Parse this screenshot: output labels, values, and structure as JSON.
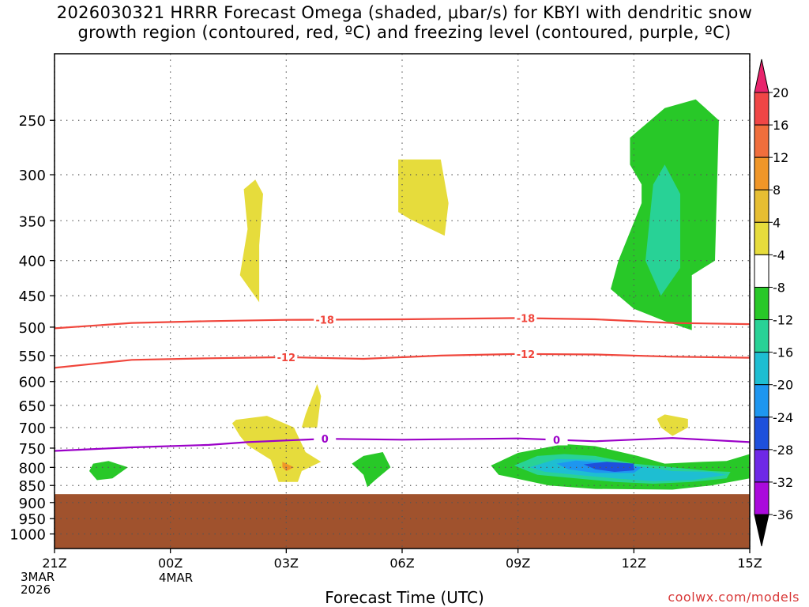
{
  "title_line1": "2026030321 HRRR Forecast Omega (shaded, μbar/s) for KBYI with dendritic snow",
  "title_line2": "growth region (contoured, red, ºC) and freezing level (contoured, purple, ºC)",
  "xlabel": "Forecast Time (UTC)",
  "credit": "coolwx.com/models",
  "date_labels": [
    "3MAR",
    "2026"
  ],
  "date_label_2": "4MAR",
  "colors": {
    "ground": "#a0522d",
    "dgz_line": "#f0463c",
    "freezing_line": "#9b00c8",
    "gridline": "#555555"
  },
  "chart_data": {
    "type": "cross-section",
    "title": "HRRR Forecast Omega for KBYI",
    "x_ticks": [
      "21Z",
      "00Z",
      "03Z",
      "06Z",
      "09Z",
      "12Z",
      "15Z"
    ],
    "x_hours": [
      0,
      3,
      6,
      9,
      12,
      15,
      18
    ],
    "y_ticks": [
      250,
      300,
      350,
      400,
      450,
      500,
      550,
      600,
      650,
      700,
      750,
      800,
      850,
      900,
      950,
      1000
    ],
    "y_range_hpa": [
      200,
      1050
    ],
    "ground_level_hpa": 875,
    "colorbar": {
      "labels": [
        "20",
        "16",
        "12",
        "8",
        "4",
        "-4",
        "-8",
        "-12",
        "-16",
        "-20",
        "-24",
        "-28",
        "-32",
        "-36"
      ],
      "colors": [
        "#e8246c",
        "#f04646",
        "#f06e3c",
        "#f09628",
        "#e6be32",
        "#e6dc3c",
        "#ffffff",
        "#28c828",
        "#28d296",
        "#1ebed2",
        "#1e96f0",
        "#1e50dc",
        "#6e28e6",
        "#aa0adc",
        "#a0a0a0",
        "#000000"
      ]
    },
    "contours": [
      {
        "name": "dgz_-18",
        "label": "-18",
        "color": "#f0463c",
        "points": [
          [
            0,
            502
          ],
          [
            2,
            493
          ],
          [
            4,
            490
          ],
          [
            6,
            488
          ],
          [
            9,
            487
          ],
          [
            12,
            485
          ],
          [
            14,
            487
          ],
          [
            16,
            493
          ],
          [
            18,
            495
          ]
        ],
        "label_hours": [
          7,
          12.2
        ]
      },
      {
        "name": "dgz_-12",
        "label": "-12",
        "color": "#f0463c",
        "points": [
          [
            0,
            573
          ],
          [
            2,
            558
          ],
          [
            4,
            555
          ],
          [
            6,
            553
          ],
          [
            8,
            556
          ],
          [
            10,
            550
          ],
          [
            12,
            547
          ],
          [
            14,
            548
          ],
          [
            16,
            552
          ],
          [
            18,
            554
          ]
        ],
        "label_hours": [
          6,
          12.2
        ]
      },
      {
        "name": "freezing_0",
        "label": "0",
        "color": "#9b00c8",
        "points": [
          [
            0,
            757
          ],
          [
            2,
            748
          ],
          [
            4,
            742
          ],
          [
            5,
            735
          ],
          [
            7,
            727
          ],
          [
            9,
            729
          ],
          [
            12,
            726
          ],
          [
            14,
            733
          ],
          [
            16,
            725
          ],
          [
            18,
            735
          ]
        ],
        "label_hours": [
          7,
          13
        ]
      }
    ],
    "omega_regions": [
      {
        "value": 4,
        "color": "#e6dc3c",
        "points": [
          [
            4.9,
            315
          ],
          [
            5.2,
            305
          ],
          [
            5.4,
            320
          ],
          [
            5.3,
            380
          ],
          [
            5.3,
            430
          ],
          [
            5.3,
            460
          ],
          [
            4.8,
            420
          ],
          [
            5.0,
            360
          ]
        ]
      },
      {
        "value": 4,
        "color": "#e6dc3c",
        "points": [
          [
            8.9,
            285
          ],
          [
            10.0,
            285
          ],
          [
            10.2,
            330
          ],
          [
            10.1,
            368
          ],
          [
            9.2,
            348
          ],
          [
            8.9,
            340
          ]
        ]
      },
      {
        "value": 4,
        "color": "#e6dc3c",
        "points": [
          [
            6.8,
            605
          ],
          [
            6.9,
            630
          ],
          [
            6.8,
            700
          ],
          [
            6.4,
            700
          ],
          [
            6.5,
            670
          ]
        ]
      },
      {
        "value": 4,
        "color": "#e6dc3c",
        "points": [
          [
            4.7,
            682
          ],
          [
            5.5,
            673
          ],
          [
            6.2,
            700
          ],
          [
            6.5,
            760
          ],
          [
            6.9,
            785
          ],
          [
            6.4,
            810
          ],
          [
            6.3,
            840
          ],
          [
            5.8,
            840
          ],
          [
            5.6,
            780
          ],
          [
            5.0,
            743
          ],
          [
            4.8,
            720
          ],
          [
            4.6,
            690
          ]
        ]
      },
      {
        "value": 8,
        "color": "#f09628",
        "points": [
          [
            5.9,
            785
          ],
          [
            6.2,
            800
          ],
          [
            6.0,
            810
          ],
          [
            5.9,
            800
          ]
        ]
      },
      {
        "value": 4,
        "color": "#e6dc3c",
        "points": [
          [
            15.8,
            670
          ],
          [
            16.4,
            680
          ],
          [
            16.4,
            700
          ],
          [
            16.0,
            720
          ],
          [
            15.7,
            700
          ],
          [
            15.6,
            680
          ]
        ]
      },
      {
        "value": -4,
        "color": "#28c828",
        "points": [
          [
            14.9,
            265
          ],
          [
            15.8,
            240
          ],
          [
            16.6,
            233
          ],
          [
            17.2,
            250
          ],
          [
            17.1,
            400
          ],
          [
            16.5,
            420
          ],
          [
            16.5,
            505
          ],
          [
            15.8,
            490
          ],
          [
            15.0,
            470
          ],
          [
            14.4,
            440
          ],
          [
            14.6,
            400
          ],
          [
            15.2,
            330
          ],
          [
            15.2,
            310
          ],
          [
            14.9,
            290
          ]
        ]
      },
      {
        "value": -8,
        "color": "#28d296",
        "points": [
          [
            15.5,
            310
          ],
          [
            15.8,
            290
          ],
          [
            16.2,
            320
          ],
          [
            16.2,
            410
          ],
          [
            15.7,
            450
          ],
          [
            15.3,
            400
          ]
        ]
      },
      {
        "value": -4,
        "color": "#28c828",
        "points": [
          [
            1.0,
            790
          ],
          [
            1.4,
            783
          ],
          [
            1.9,
            800
          ],
          [
            1.5,
            830
          ],
          [
            1.1,
            835
          ],
          [
            0.9,
            810
          ]
        ]
      },
      {
        "value": -4,
        "color": "#28c828",
        "points": [
          [
            8.0,
            770
          ],
          [
            8.5,
            760
          ],
          [
            8.7,
            800
          ],
          [
            8.3,
            835
          ],
          [
            8.1,
            855
          ],
          [
            8.0,
            820
          ],
          [
            7.7,
            790
          ]
        ]
      },
      {
        "value": -4,
        "color": "#28c828",
        "points": [
          [
            11.3,
            795
          ],
          [
            12.0,
            762
          ],
          [
            13.2,
            740
          ],
          [
            14.0,
            745
          ],
          [
            15.1,
            770
          ],
          [
            15.8,
            790
          ],
          [
            16.8,
            785
          ],
          [
            17.4,
            783
          ],
          [
            18.0,
            765
          ],
          [
            18.0,
            830
          ],
          [
            17.0,
            850
          ],
          [
            16.0,
            862
          ],
          [
            14.0,
            860
          ],
          [
            12.8,
            850
          ],
          [
            11.5,
            820
          ]
        ]
      },
      {
        "value": -8,
        "color": "#28d296",
        "points": [
          [
            11.9,
            795
          ],
          [
            12.5,
            770
          ],
          [
            13.2,
            765
          ],
          [
            14.0,
            770
          ],
          [
            15.0,
            790
          ],
          [
            16.0,
            800
          ],
          [
            17.0,
            810
          ],
          [
            17.5,
            812
          ],
          [
            17.4,
            830
          ],
          [
            16.5,
            840
          ],
          [
            15.5,
            845
          ],
          [
            14.5,
            840
          ],
          [
            13.5,
            830
          ],
          [
            12.5,
            820
          ]
        ]
      },
      {
        "value": -12,
        "color": "#1ebed2",
        "points": [
          [
            12.3,
            800
          ],
          [
            13.0,
            778
          ],
          [
            14.0,
            780
          ],
          [
            15.0,
            795
          ],
          [
            16.0,
            810
          ],
          [
            17.0,
            812
          ],
          [
            17.4,
            820
          ],
          [
            16.5,
            835
          ],
          [
            15.5,
            838
          ],
          [
            14.5,
            830
          ],
          [
            13.5,
            820
          ],
          [
            12.7,
            812
          ]
        ]
      },
      {
        "value": -16,
        "color": "#1e96f0",
        "points": [
          [
            13.0,
            790
          ],
          [
            13.5,
            782
          ],
          [
            14.5,
            790
          ],
          [
            15.2,
            800
          ],
          [
            15.0,
            815
          ],
          [
            14.0,
            815
          ],
          [
            13.3,
            805
          ]
        ]
      },
      {
        "value": -20,
        "color": "#1e50dc",
        "points": [
          [
            13.7,
            792
          ],
          [
            14.3,
            785
          ],
          [
            15.0,
            790
          ],
          [
            15.0,
            808
          ],
          [
            14.5,
            812
          ],
          [
            14.0,
            805
          ]
        ]
      }
    ]
  }
}
